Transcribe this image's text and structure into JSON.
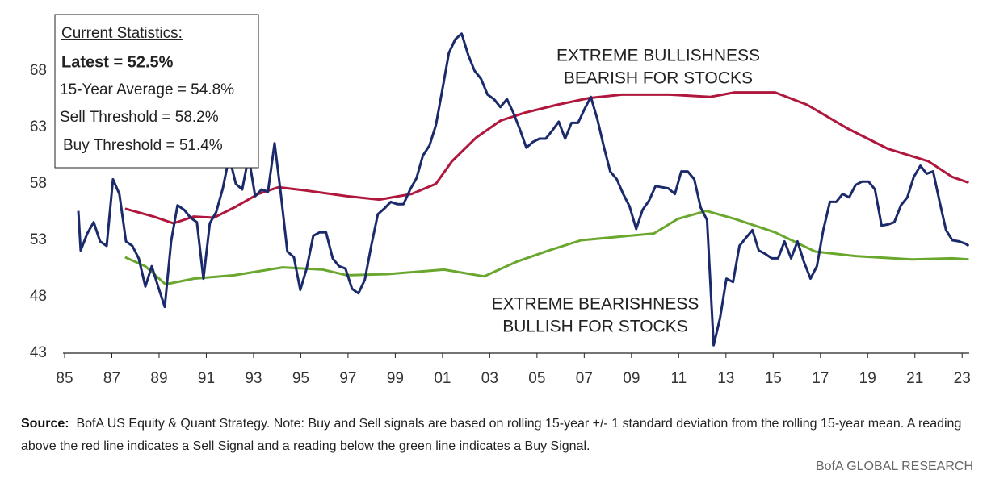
{
  "chart_data": {
    "type": "line",
    "xlim": [
      1985,
      2023.3
    ],
    "ylim": [
      43,
      73
    ],
    "grid": false,
    "yticks": [
      43,
      48,
      53,
      58,
      63,
      68
    ],
    "xticks": [
      {
        "value": 1985,
        "label": "85"
      },
      {
        "value": 1987,
        "label": "87"
      },
      {
        "value": 1989,
        "label": "89"
      },
      {
        "value": 1991,
        "label": "91"
      },
      {
        "value": 1993,
        "label": "93"
      },
      {
        "value": 1995,
        "label": "95"
      },
      {
        "value": 1997,
        "label": "97"
      },
      {
        "value": 1999,
        "label": "99"
      },
      {
        "value": 2001,
        "label": "01"
      },
      {
        "value": 2003,
        "label": "03"
      },
      {
        "value": 2005,
        "label": "05"
      },
      {
        "value": 2007,
        "label": "07"
      },
      {
        "value": 2009,
        "label": "09"
      },
      {
        "value": 2011,
        "label": "11"
      },
      {
        "value": 2013,
        "label": "13"
      },
      {
        "value": 2015,
        "label": "15"
      },
      {
        "value": 2017,
        "label": "17"
      },
      {
        "value": 2019,
        "label": "19"
      },
      {
        "value": 2021,
        "label": "21"
      },
      {
        "value": 2023,
        "label": "23"
      }
    ],
    "series": [
      {
        "color": "#1b2a6b",
        "x": [
          1985.58,
          1985.68,
          1985.96,
          1986.23,
          1986.5,
          1986.78,
          1987.05,
          1987.32,
          1987.6,
          1987.87,
          1988.14,
          1988.42,
          1988.69,
          1988.96,
          1989.24,
          1989.51,
          1989.78,
          1990.06,
          1990.33,
          1990.6,
          1990.88,
          1991.15,
          1991.42,
          1991.7,
          1991.97,
          1992.25,
          1992.52,
          1992.79,
          1993.07,
          1993.34,
          1993.61,
          1993.89,
          1994.16,
          1994.43,
          1994.71,
          1994.98,
          1995.25,
          1995.53,
          1995.8,
          1996.07,
          1996.35,
          1996.62,
          1996.89,
          1997.17,
          1997.44,
          1997.71,
          1997.99,
          1998.26,
          1998.53,
          1998.81,
          1999.08,
          1999.35,
          1999.63,
          1999.9,
          2000.17,
          2000.45,
          2000.72,
          2000.99,
          2001.27,
          2001.54,
          2001.81,
          2002.09,
          2002.36,
          2002.63,
          2002.91,
          2003.18,
          2003.45,
          2003.73,
          2004.0,
          2004.28,
          2004.55,
          2004.82,
          2005.1,
          2005.37,
          2005.64,
          2005.92,
          2006.19,
          2006.46,
          2006.74,
          2007.01,
          2007.28,
          2007.56,
          2007.83,
          2008.1,
          2008.38,
          2008.65,
          2008.92,
          2009.2,
          2009.47,
          2009.74,
          2010.02,
          2010.29,
          2010.56,
          2010.84,
          2011.11,
          2011.38,
          2011.66,
          2011.93,
          2012.2,
          2012.48,
          2012.75,
          2013.02,
          2013.3,
          2013.57,
          2013.84,
          2014.12,
          2014.39,
          2014.66,
          2014.94,
          2015.21,
          2015.48,
          2015.76,
          2016.03,
          2016.3,
          2016.58,
          2016.85,
          2017.12,
          2017.4,
          2017.67,
          2017.94,
          2018.22,
          2018.49,
          2018.77,
          2019.04,
          2019.31,
          2019.59,
          2019.86,
          2020.13,
          2020.41,
          2020.68,
          2020.95,
          2021.23,
          2021.5,
          2021.77,
          2022.05,
          2022.32,
          2022.59,
          2022.87,
          2023.14,
          2023.28
        ],
        "values": [
          55.6,
          52.1,
          53.6,
          54.6,
          52.9,
          52.5,
          58.4,
          57.1,
          52.9,
          52.5,
          51.4,
          48.9,
          50.7,
          48.9,
          47.1,
          52.9,
          56.1,
          55.7,
          55.0,
          54.6,
          49.6,
          54.5,
          55.5,
          57.6,
          60.4,
          58.0,
          57.5,
          60.4,
          56.9,
          57.5,
          57.3,
          61.6,
          57.0,
          52.0,
          51.5,
          48.6,
          50.5,
          53.4,
          53.7,
          53.7,
          51.4,
          50.7,
          50.5,
          48.7,
          48.3,
          49.5,
          52.6,
          55.3,
          55.8,
          56.4,
          56.2,
          56.2,
          57.5,
          58.5,
          60.5,
          61.4,
          63.2,
          66.3,
          69.6,
          70.8,
          71.3,
          69.4,
          68.0,
          67.3,
          65.9,
          65.5,
          64.8,
          65.5,
          64.3,
          62.8,
          61.2,
          61.7,
          62.0,
          62.0,
          62.7,
          63.5,
          62.0,
          63.4,
          63.4,
          64.6,
          65.7,
          63.7,
          61.3,
          59.1,
          58.4,
          57.1,
          56.0,
          54.0,
          55.7,
          56.5,
          57.8,
          57.7,
          57.6,
          57.1,
          59.1,
          59.1,
          58.4,
          55.9,
          54.8,
          43.7,
          46.1,
          49.6,
          49.3,
          52.5,
          53.2,
          53.9,
          52.1,
          51.8,
          51.4,
          51.4,
          52.9,
          51.4,
          52.9,
          51.1,
          49.6,
          50.7,
          53.9,
          56.4,
          56.4,
          57.1,
          56.8,
          57.9,
          58.2,
          58.2,
          57.5,
          54.3,
          54.4,
          54.6,
          56.1,
          56.8,
          58.6,
          59.6,
          58.9,
          59.1,
          56.4,
          53.9,
          53.0,
          52.9,
          52.7,
          52.5
        ]
      },
      {
        "color": "#b0173c",
        "x": [
          1987.56,
          1988.76,
          1989.61,
          1990.47,
          1991.32,
          1992.18,
          1993.2,
          1994.06,
          1995.25,
          1996.96,
          1998.33,
          1999.69,
          2000.72,
          2001.4,
          2002.43,
          2003.46,
          2004.48,
          2005.85,
          2007.21,
          2008.58,
          2010.63,
          2012.34,
          2013.37,
          2015.08,
          2016.44,
          2018.15,
          2019.86,
          2021.57,
          2022.59,
          2023.28
        ],
        "values": [
          55.8,
          55.1,
          54.5,
          55.1,
          55.0,
          55.9,
          57.1,
          57.7,
          57.4,
          56.9,
          56.6,
          57.1,
          58.0,
          60.0,
          62.1,
          63.6,
          64.3,
          65.0,
          65.6,
          65.9,
          65.9,
          65.7,
          66.1,
          66.1,
          65.0,
          62.9,
          61.1,
          60.0,
          58.6,
          58.1
        ]
      },
      {
        "color": "#6aa72f",
        "x": [
          1987.56,
          1988.42,
          1989.27,
          1990.47,
          1992.18,
          1994.23,
          1995.94,
          1996.96,
          1998.67,
          2001.06,
          2002.77,
          2004.14,
          2005.51,
          2006.87,
          2008.92,
          2009.95,
          2010.97,
          2012.17,
          2013.37,
          2015.08,
          2016.78,
          2018.49,
          2020.88,
          2022.59,
          2023.28
        ],
        "values": [
          51.5,
          50.7,
          49.1,
          49.6,
          49.9,
          50.6,
          50.4,
          49.9,
          50.0,
          50.4,
          49.8,
          51.1,
          52.1,
          53.0,
          53.4,
          53.6,
          54.9,
          55.6,
          54.9,
          53.7,
          52.0,
          51.6,
          51.3,
          51.4,
          51.3
        ]
      }
    ],
    "stats_box": {
      "title": "Current Statistics:",
      "lines": [
        "Latest = 52.5%",
        "15-Year Average = 54.8%",
        "Sell Threshold = 58.2%",
        "Buy Threshold = 51.4%"
      ]
    },
    "annotations": [
      {
        "lines": [
          "EXTREME BULLISHNESS",
          "BEARISH FOR STOCKS"
        ]
      },
      {
        "lines": [
          "EXTREME BEARISHNESS",
          "BULLISH FOR STOCKS"
        ]
      }
    ],
    "source_label": "Source:",
    "source_text": "BofA US Equity & Quant Strategy. Note: Buy and Sell signals are based on rolling 15-year +/- 1 standard deviation from the rolling 15-year mean. A reading above the red line indicates a Sell Signal and a reading below the green line indicates a Buy Signal.",
    "credit": "BofA GLOBAL RESEARCH"
  }
}
